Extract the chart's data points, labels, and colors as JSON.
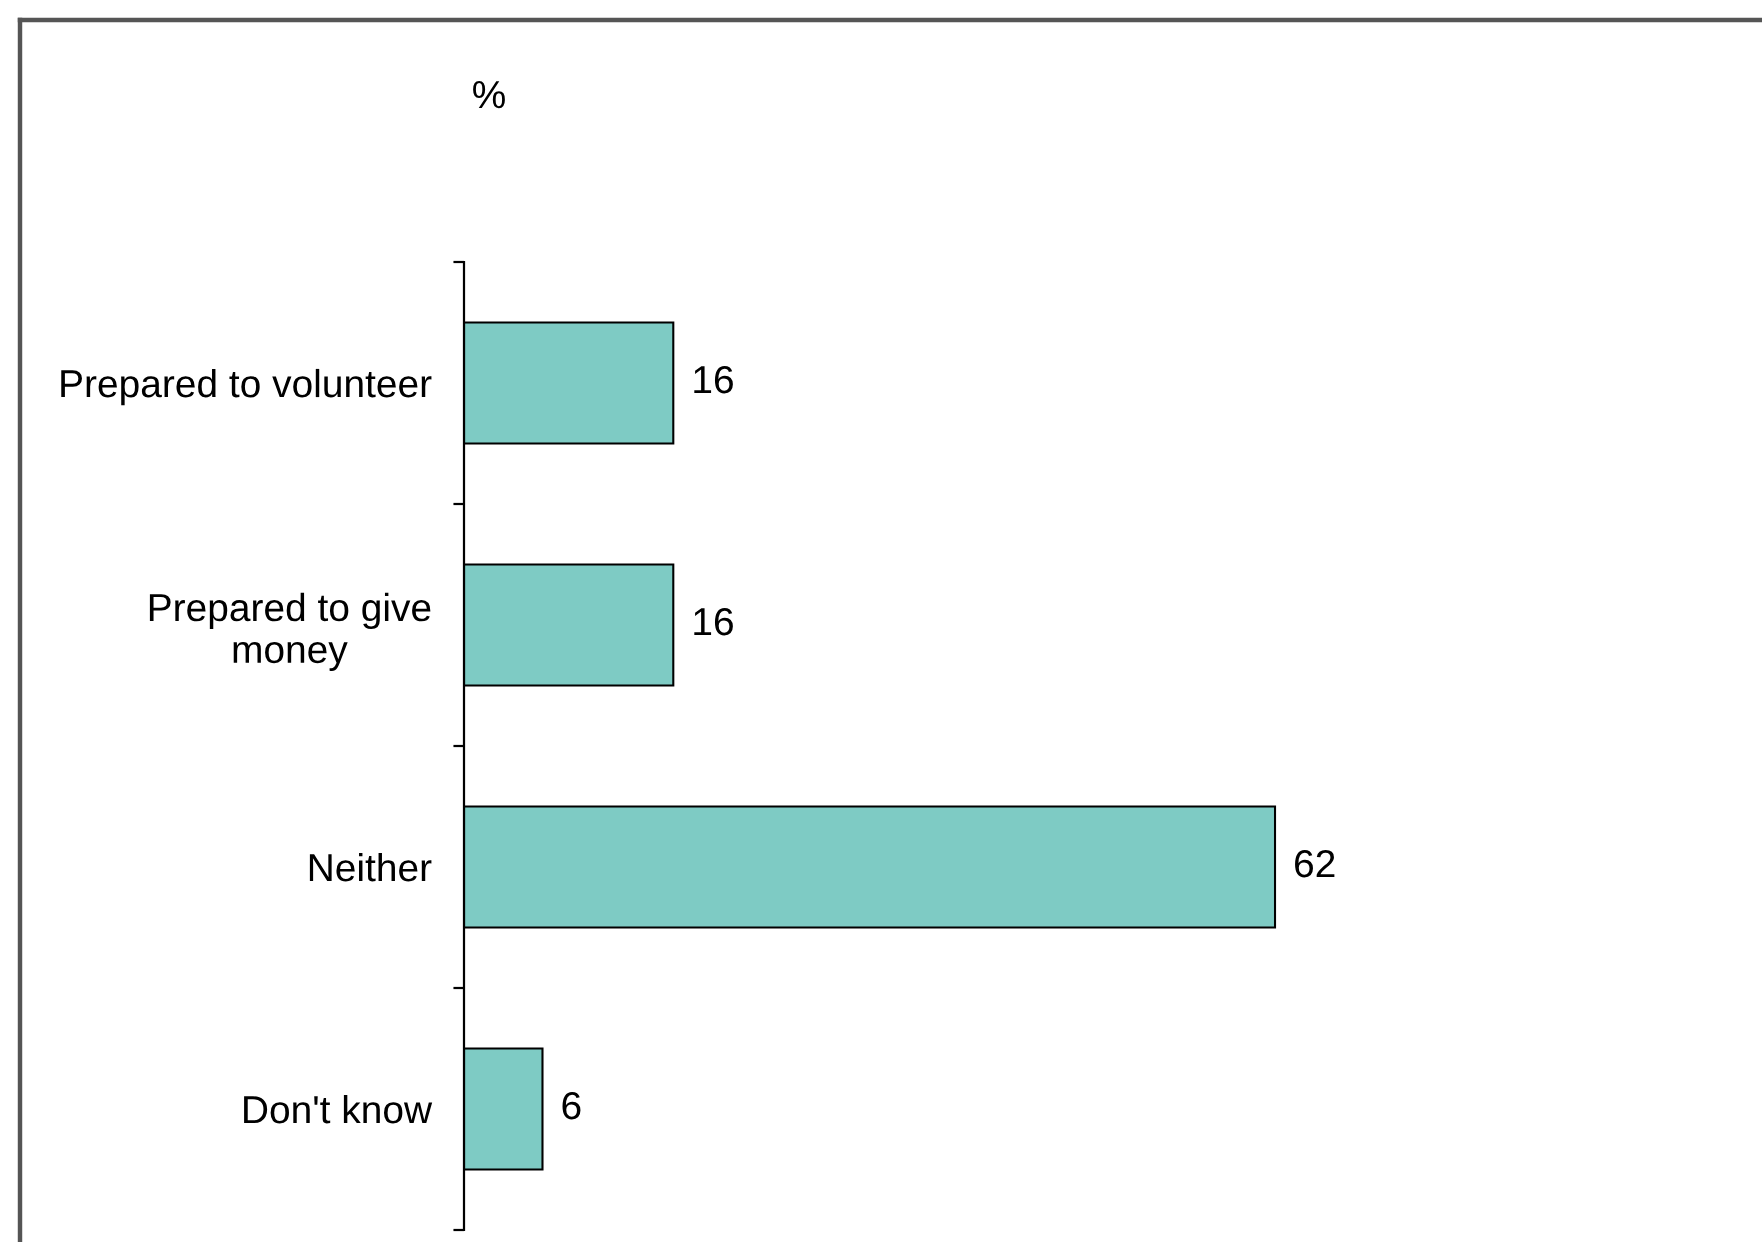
{
  "chart_data": {
    "type": "bar",
    "orientation": "horizontal",
    "xlabel": "%",
    "categories": [
      "Prepared to volunteer",
      "Prepared to give\nmoney",
      "Neither",
      "Don't know"
    ],
    "values": [
      16,
      16,
      62,
      6
    ],
    "color": "#7ecbc4",
    "data_labels": true,
    "tick_labels": "y"
  }
}
